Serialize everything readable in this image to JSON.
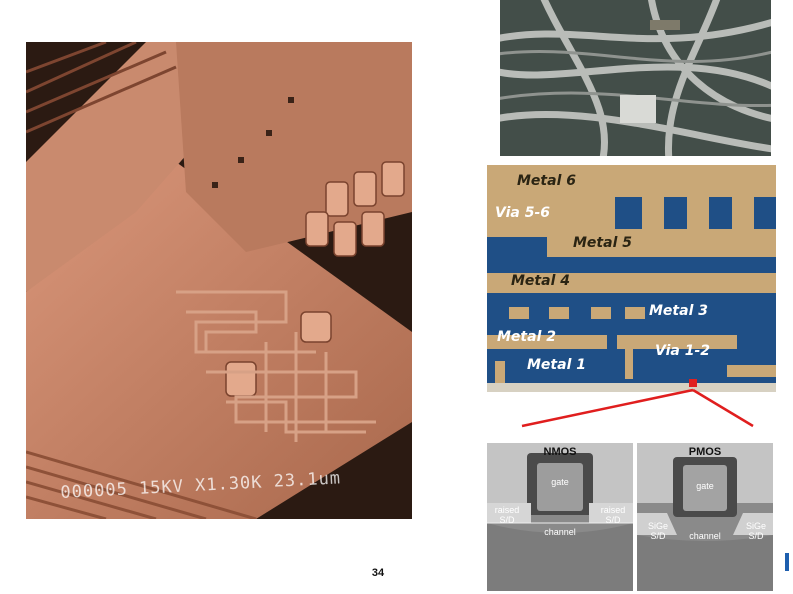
{
  "sem_image": {
    "caption": "000005 15KV X1.30K 23.1um"
  },
  "cross_section": {
    "labels": {
      "metal6": "Metal 6",
      "via56": "Via 5-6",
      "metal5": "Metal 5",
      "metal4": "Metal 4",
      "metal3": "Metal 3",
      "metal2": "Metal 2",
      "via12": "Via 1-2",
      "metal1": "Metal 1"
    }
  },
  "nmos": {
    "title": "NMOS",
    "gate": "gate",
    "raised_left": "raised\nS/D",
    "raised_right": "raised\nS/D",
    "channel": "channel"
  },
  "pmos": {
    "title": "PMOS",
    "gate": "gate",
    "sige_left": "SiGe\nS/D",
    "sige_right": "SiGe\nS/D",
    "channel": "channel"
  },
  "page_number": "34",
  "colors": {
    "callout": "#e01e1e",
    "substrate": "#1f4f86",
    "metal": "#c9a877"
  }
}
